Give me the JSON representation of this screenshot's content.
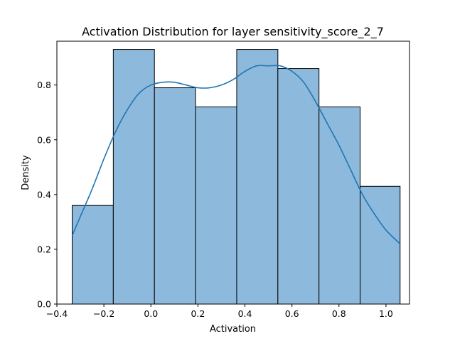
{
  "chart_data": {
    "type": "bar",
    "title": "Activation Distribution for layer sensitivity_score_2_7",
    "xlabel": "Activation",
    "ylabel": "Density",
    "xlim": [
      -0.4,
      1.1
    ],
    "ylim": [
      0,
      0.96
    ],
    "x_ticks": [
      -0.4,
      -0.2,
      0.0,
      0.2,
      0.4,
      0.6,
      0.8,
      1.0
    ],
    "x_tick_labels": [
      "−0.4",
      "−0.2",
      "0.0",
      "0.2",
      "0.4",
      "0.6",
      "0.8",
      "1.0"
    ],
    "y_ticks": [
      0.0,
      0.2,
      0.4,
      0.6,
      0.8
    ],
    "y_tick_labels": [
      "0.0",
      "0.2",
      "0.4",
      "0.6",
      "0.8"
    ],
    "bins": [
      {
        "x0": -0.335,
        "x1": -0.16,
        "density": 0.36
      },
      {
        "x0": -0.16,
        "x1": 0.015,
        "density": 0.93
      },
      {
        "x0": 0.015,
        "x1": 0.19,
        "density": 0.79
      },
      {
        "x0": 0.19,
        "x1": 0.365,
        "density": 0.72
      },
      {
        "x0": 0.365,
        "x1": 0.54,
        "density": 0.93
      },
      {
        "x0": 0.54,
        "x1": 0.715,
        "density": 0.86
      },
      {
        "x0": 0.715,
        "x1": 0.89,
        "density": 0.72
      },
      {
        "x0": 0.89,
        "x1": 1.06,
        "density": 0.43
      }
    ],
    "kde": {
      "x": [
        -0.335,
        -0.3,
        -0.25,
        -0.2,
        -0.15,
        -0.1,
        -0.05,
        0.0,
        0.05,
        0.1,
        0.15,
        0.2,
        0.25,
        0.3,
        0.35,
        0.4,
        0.45,
        0.5,
        0.55,
        0.6,
        0.65,
        0.7,
        0.75,
        0.8,
        0.85,
        0.9,
        0.95,
        1.0,
        1.06
      ],
      "y": [
        0.25,
        0.32,
        0.42,
        0.53,
        0.63,
        0.71,
        0.77,
        0.8,
        0.81,
        0.81,
        0.8,
        0.79,
        0.79,
        0.8,
        0.82,
        0.85,
        0.87,
        0.87,
        0.87,
        0.85,
        0.81,
        0.74,
        0.66,
        0.58,
        0.49,
        0.4,
        0.33,
        0.27,
        0.22
      ]
    },
    "colors": {
      "bar_fill": "#8db9dc",
      "bar_edge": "#000000",
      "kde_line": "#1f77b4"
    },
    "grid": false,
    "legend": false
  }
}
